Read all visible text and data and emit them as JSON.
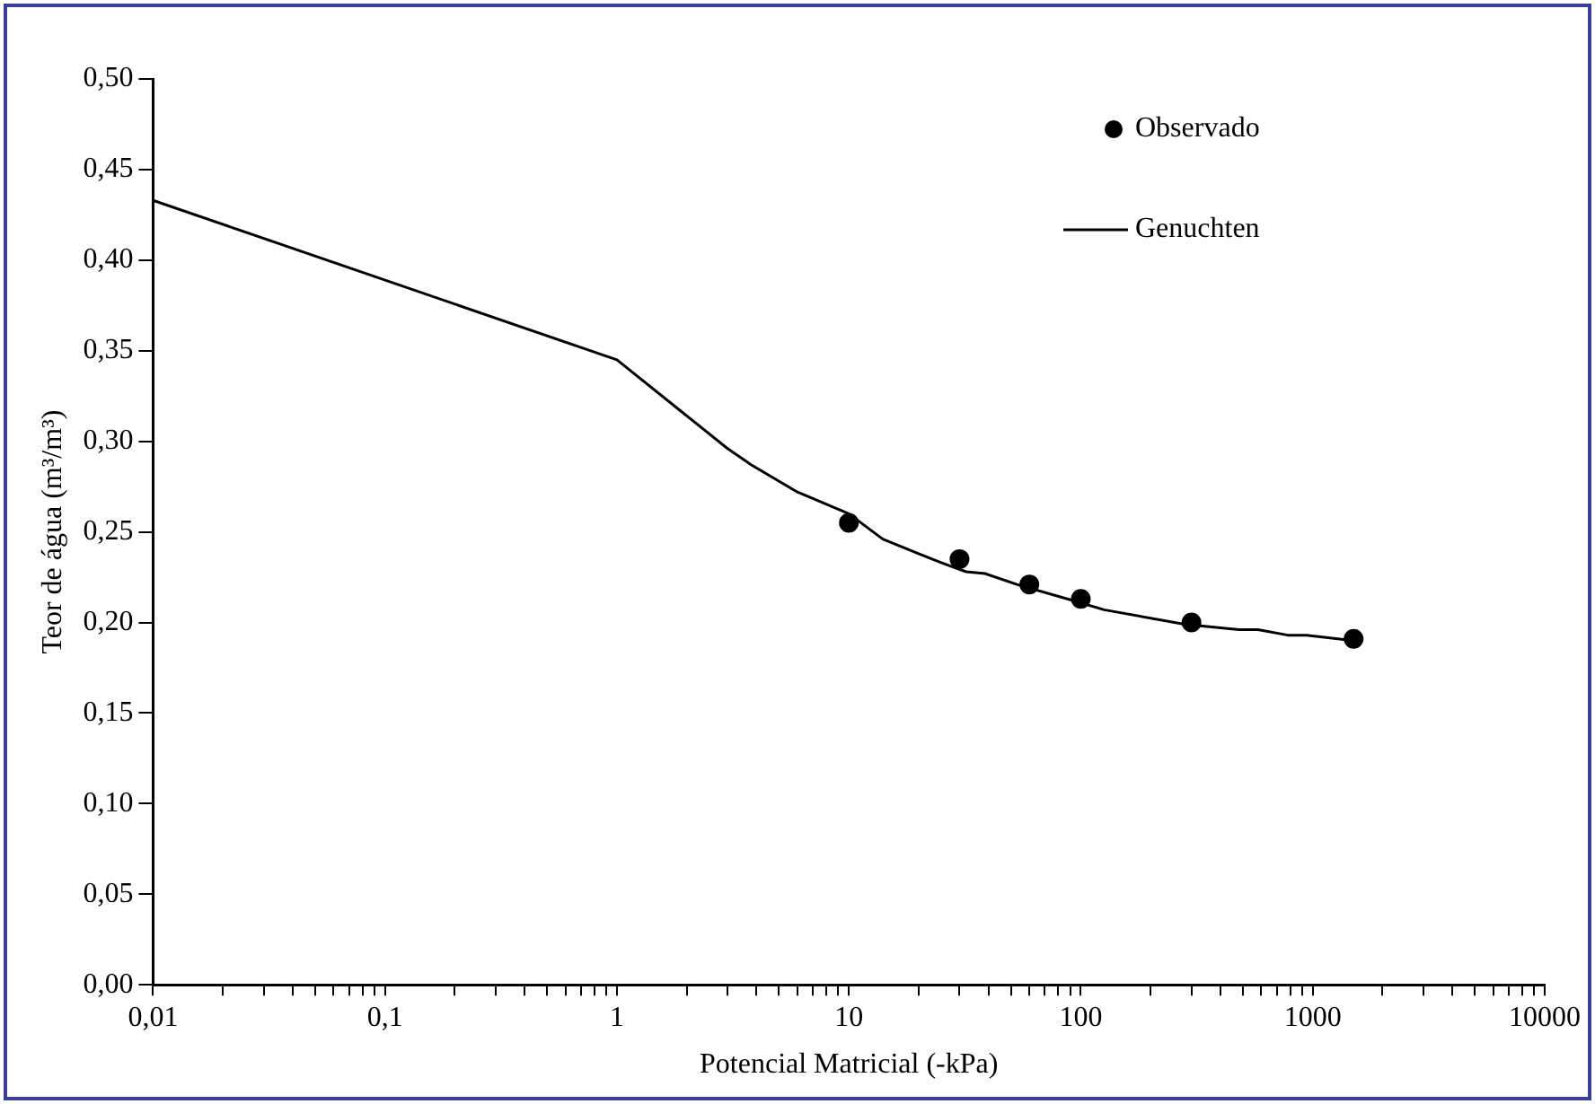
{
  "chart_data": {
    "type": "line",
    "xlabel": "Potencial Matricial (-kPa)",
    "ylabel": "Teor de água (m³/m³)",
    "log": "x",
    "grid": false,
    "legend": "top right",
    "xlim": [
      0.01,
      10000
    ],
    "xticks": [
      {
        "value": 0.01,
        "label": "0,01"
      },
      {
        "value": 0.02,
        "label": null
      },
      {
        "value": 0.03,
        "label": null
      },
      {
        "value": 0.04,
        "label": null
      },
      {
        "value": 0.05,
        "label": null
      },
      {
        "value": 0.06,
        "label": null
      },
      {
        "value": 0.07,
        "label": null
      },
      {
        "value": 0.08,
        "label": null
      },
      {
        "value": 0.09,
        "label": null
      },
      {
        "value": 0.1,
        "label": "0,1"
      },
      {
        "value": 0.2,
        "label": null
      },
      {
        "value": 0.3,
        "label": null
      },
      {
        "value": 0.4,
        "label": null
      },
      {
        "value": 0.5,
        "label": null
      },
      {
        "value": 0.6,
        "label": null
      },
      {
        "value": 0.7,
        "label": null
      },
      {
        "value": 0.8,
        "label": null
      },
      {
        "value": 0.9,
        "label": null
      },
      1,
      {
        "value": 2,
        "label": null
      },
      {
        "value": 3,
        "label": null
      },
      {
        "value": 4,
        "label": null
      },
      {
        "value": 5,
        "label": null
      },
      {
        "value": 6,
        "label": null
      },
      {
        "value": 7,
        "label": null
      },
      {
        "value": 8,
        "label": null
      },
      {
        "value": 9,
        "label": null
      },
      10,
      {
        "value": 20,
        "label": null
      },
      {
        "value": 30,
        "label": null
      },
      {
        "value": 40,
        "label": null
      },
      {
        "value": 50,
        "label": null
      },
      {
        "value": 60,
        "label": null
      },
      {
        "value": 70,
        "label": null
      },
      {
        "value": 80,
        "label": null
      },
      {
        "value": 90,
        "label": null
      },
      100,
      {
        "value": 200,
        "label": null
      },
      {
        "value": 300,
        "label": null
      },
      {
        "value": 400,
        "label": null
      },
      {
        "value": 500,
        "label": null
      },
      {
        "value": 600,
        "label": null
      },
      {
        "value": 700,
        "label": null
      },
      {
        "value": 800,
        "label": null
      },
      {
        "value": 900,
        "label": null
      },
      1000,
      {
        "value": 2000,
        "label": null
      },
      {
        "value": 3000,
        "label": null
      },
      {
        "value": 4000,
        "label": null
      },
      {
        "value": 5000,
        "label": null
      },
      {
        "value": 6000,
        "label": null
      },
      {
        "value": 7000,
        "label": null
      },
      {
        "value": 8000,
        "label": null
      },
      {
        "value": 9000,
        "label": null
      },
      10000
    ],
    "ylim": [
      0,
      0.5
    ],
    "yticks": [
      {
        "value": 0,
        "label": "0,00"
      },
      {
        "value": 0.05,
        "label": "0,05"
      },
      {
        "value": 0.1,
        "label": "0,10"
      },
      {
        "value": 0.15,
        "label": "0,15"
      },
      {
        "value": 0.2,
        "label": "0,20"
      },
      {
        "value": 0.25,
        "label": "0,25"
      },
      {
        "value": 0.3,
        "label": "0,30"
      },
      {
        "value": 0.35,
        "label": "0,35"
      },
      {
        "value": 0.4,
        "label": "0,40"
      },
      {
        "value": 0.45,
        "label": "0,45"
      },
      {
        "value": 0.5,
        "label": "0,50"
      }
    ],
    "series": [
      {
        "name": "Observado",
        "type": "scatter",
        "marker": "circle",
        "color": "#000000",
        "x": [
          10,
          30,
          60,
          100,
          300,
          1500
        ],
        "values": [
          0.255,
          0.235,
          0.221,
          0.213,
          0.2,
          0.191
        ]
      },
      {
        "name": "Genuchten",
        "type": "line",
        "marker": "none",
        "line_style": "solid",
        "color": "#000000",
        "x": [
          0.01,
          1,
          3,
          3.8,
          6,
          10,
          14,
          25,
          32,
          38.6,
          53,
          93,
          126,
          280,
          480,
          580,
          780,
          940,
          1500
        ],
        "values": [
          0.433,
          0.345,
          0.296,
          0.287,
          0.272,
          0.26,
          0.246,
          0.233,
          0.228,
          0.227,
          0.221,
          0.212,
          0.207,
          0.199,
          0.196,
          0.196,
          0.193,
          0.193,
          0.19
        ]
      }
    ]
  }
}
